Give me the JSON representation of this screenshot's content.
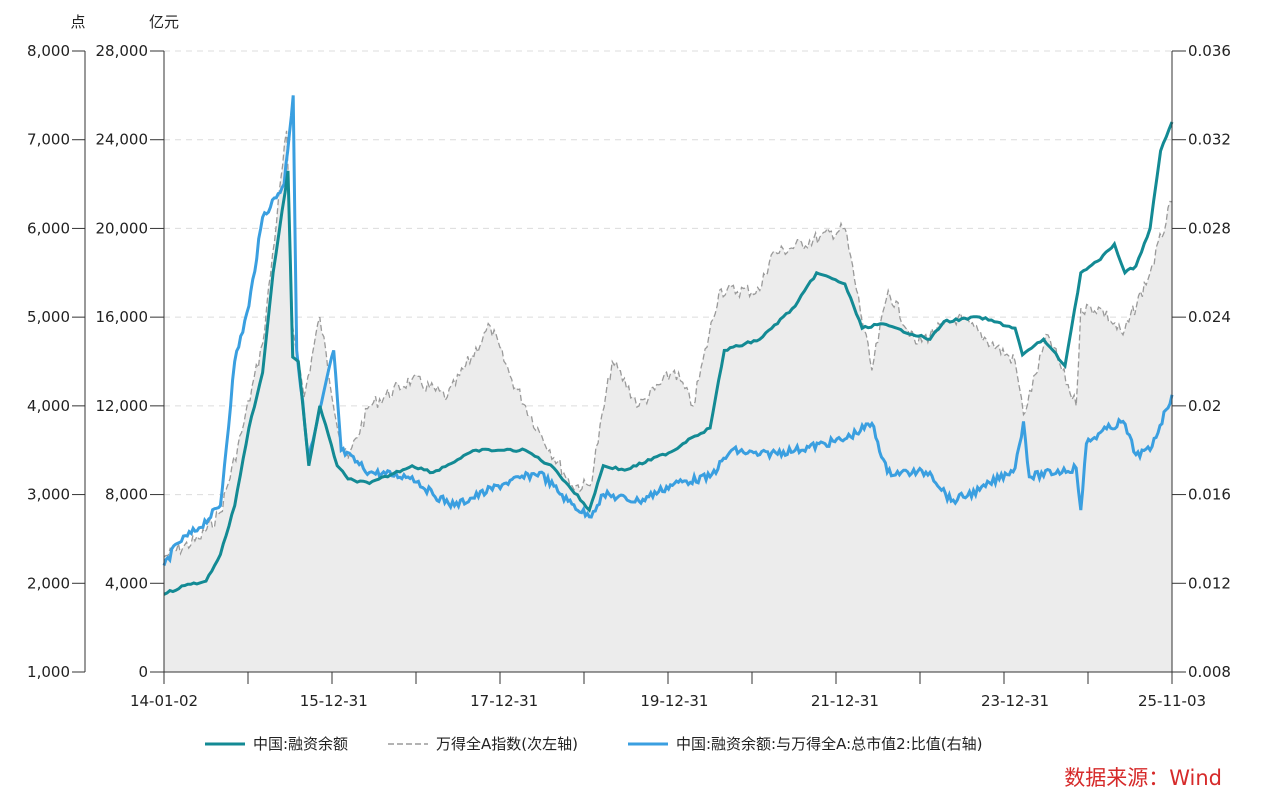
{
  "chart_data": {
    "type": "line",
    "units": {
      "left_outer": "点",
      "left_inner": "亿元"
    },
    "source": "数据来源：Wind",
    "colors": {
      "margin": "#138a94",
      "index": "#9a9a9a",
      "ratio": "#3a9fe0",
      "index_fill": "#ececec",
      "source": "#d62a2a",
      "grid": "#dcdcdc"
    },
    "axes": {
      "x": {
        "start": "2014-01-02",
        "end": "2025-11-03",
        "ticks": [
          "14-01-02",
          "15-12-31",
          "17-12-31",
          "19-12-31",
          "21-12-31",
          "23-12-31",
          "25-11-03"
        ],
        "tick_dates": [
          "2014-01-02",
          "2015-12-31",
          "2017-12-31",
          "2019-12-31",
          "2021-12-31",
          "2023-12-31",
          "2025-11-03"
        ]
      },
      "y_left_outer": {
        "range": [
          1000,
          8000
        ],
        "ticks": [
          "1,000",
          "2,000",
          "3,000",
          "4,000",
          "5,000",
          "6,000",
          "7,000",
          "8,000"
        ]
      },
      "y_left_inner": {
        "range": [
          0,
          28000
        ],
        "ticks": [
          "0",
          "4,000",
          "8,000",
          "12,000",
          "16,000",
          "20,000",
          "24,000",
          "28,000"
        ]
      },
      "y_right": {
        "range": [
          0.008,
          0.036
        ],
        "ticks": [
          "0.008",
          "0.012",
          "0.016",
          "0.02",
          "0.024",
          "0.028",
          "0.032",
          "0.036"
        ]
      }
    },
    "grid": true,
    "legend_position": "bottom",
    "series": [
      {
        "name": "中国:融资余额",
        "axis": "y_left_inner",
        "style": "solid",
        "points": [
          [
            "2014-01-02",
            3500
          ],
          [
            "2014-04-01",
            3900
          ],
          [
            "2014-07-01",
            4100
          ],
          [
            "2014-09-01",
            5300
          ],
          [
            "2014-11-01",
            7500
          ],
          [
            "2015-01-01",
            11000
          ],
          [
            "2015-03-01",
            13500
          ],
          [
            "2015-04-15",
            18000
          ],
          [
            "2015-06-18",
            22600
          ],
          [
            "2015-07-08",
            14200
          ],
          [
            "2015-08-01",
            14000
          ],
          [
            "2015-09-15",
            9300
          ],
          [
            "2015-11-01",
            12000
          ],
          [
            "2016-01-15",
            9300
          ],
          [
            "2016-03-01",
            8700
          ],
          [
            "2016-06-01",
            8500
          ],
          [
            "2016-12-01",
            9300
          ],
          [
            "2017-03-01",
            9000
          ],
          [
            "2017-09-01",
            10000
          ],
          [
            "2017-12-31",
            10000
          ],
          [
            "2018-04-01",
            10000
          ],
          [
            "2018-08-01",
            9200
          ],
          [
            "2018-12-31",
            7300
          ],
          [
            "2019-03-01",
            9300
          ],
          [
            "2019-06-01",
            9100
          ],
          [
            "2019-12-31",
            10000
          ],
          [
            "2020-03-01",
            10500
          ],
          [
            "2020-06-01",
            11000
          ],
          [
            "2020-08-01",
            14500
          ],
          [
            "2020-12-31",
            15000
          ],
          [
            "2021-06-01",
            16500
          ],
          [
            "2021-09-01",
            18000
          ],
          [
            "2021-12-31",
            17500
          ],
          [
            "2022-03-15",
            15500
          ],
          [
            "2022-06-01",
            15700
          ],
          [
            "2022-12-31",
            15000
          ],
          [
            "2023-03-01",
            15800
          ],
          [
            "2023-08-01",
            16000
          ],
          [
            "2023-12-31",
            15500
          ],
          [
            "2024-02-01",
            14300
          ],
          [
            "2024-05-01",
            15000
          ],
          [
            "2024-08-01",
            13800
          ],
          [
            "2024-10-08",
            18000
          ],
          [
            "2024-12-31",
            18600
          ],
          [
            "2025-03-01",
            19300
          ],
          [
            "2025-04-15",
            18000
          ],
          [
            "2025-06-01",
            18300
          ],
          [
            "2025-08-01",
            20000
          ],
          [
            "2025-09-15",
            23500
          ],
          [
            "2025-11-03",
            24800
          ]
        ]
      },
      {
        "name": "万得全A指数(次左轴)",
        "axis": "y_left_outer",
        "style": "dashed",
        "fill": true,
        "points": [
          [
            "2014-01-02",
            2300
          ],
          [
            "2014-06-01",
            2500
          ],
          [
            "2014-09-01",
            2800
          ],
          [
            "2014-12-01",
            3700
          ],
          [
            "2015-03-01",
            4700
          ],
          [
            "2015-06-12",
            7100
          ],
          [
            "2015-07-08",
            4900
          ],
          [
            "2015-08-26",
            4100
          ],
          [
            "2015-11-01",
            5000
          ],
          [
            "2016-01-28",
            3600
          ],
          [
            "2016-03-01",
            3400
          ],
          [
            "2016-06-01",
            4000
          ],
          [
            "2016-12-01",
            4300
          ],
          [
            "2017-05-01",
            4100
          ],
          [
            "2017-11-01",
            4900
          ],
          [
            "2018-02-01",
            4300
          ],
          [
            "2018-06-01",
            3700
          ],
          [
            "2018-10-18",
            3100
          ],
          [
            "2019-01-03",
            3100
          ],
          [
            "2019-04-08",
            4500
          ],
          [
            "2019-08-01",
            4000
          ],
          [
            "2019-12-31",
            4400
          ],
          [
            "2020-03-20",
            4000
          ],
          [
            "2020-07-10",
            5300
          ],
          [
            "2020-12-31",
            5300
          ],
          [
            "2021-02-18",
            5700
          ],
          [
            "2021-09-14",
            5900
          ],
          [
            "2021-12-31",
            6000
          ],
          [
            "2022-04-26",
            4400
          ],
          [
            "2022-07-05",
            5300
          ],
          [
            "2022-10-31",
            4700
          ],
          [
            "2023-05-01",
            5000
          ],
          [
            "2023-12-31",
            4500
          ],
          [
            "2024-02-05",
            3900
          ],
          [
            "2024-05-20",
            4800
          ],
          [
            "2024-09-18",
            4000
          ],
          [
            "2024-10-08",
            5100
          ],
          [
            "2024-12-31",
            5100
          ],
          [
            "2025-04-07",
            4800
          ],
          [
            "2025-08-01",
            5500
          ],
          [
            "2025-11-03",
            6300
          ]
        ]
      },
      {
        "name": "中国:融资余额:与万得全A:总市值2:比值(右轴)",
        "axis": "y_right",
        "style": "solid",
        "points": [
          [
            "2014-01-02",
            0.0128
          ],
          [
            "2014-03-01",
            0.0138
          ],
          [
            "2014-06-01",
            0.0145
          ],
          [
            "2014-09-01",
            0.0155
          ],
          [
            "2014-11-01",
            0.022
          ],
          [
            "2015-01-01",
            0.0245
          ],
          [
            "2015-03-01",
            0.0285
          ],
          [
            "2015-06-01",
            0.03
          ],
          [
            "2015-07-10",
            0.034
          ],
          [
            "2015-07-25",
            0.0225
          ],
          [
            "2015-09-15",
            0.0176
          ],
          [
            "2015-12-31",
            0.0225
          ],
          [
            "2016-02-01",
            0.018
          ],
          [
            "2016-06-01",
            0.017
          ],
          [
            "2016-12-01",
            0.0168
          ],
          [
            "2017-03-01",
            0.016
          ],
          [
            "2017-06-01",
            0.0155
          ],
          [
            "2017-12-31",
            0.0165
          ],
          [
            "2018-06-01",
            0.017
          ],
          [
            "2018-10-01",
            0.0157
          ],
          [
            "2018-12-31",
            0.015
          ],
          [
            "2019-03-01",
            0.016
          ],
          [
            "2019-08-01",
            0.0157
          ],
          [
            "2019-12-31",
            0.0165
          ],
          [
            "2020-06-01",
            0.0168
          ],
          [
            "2020-09-01",
            0.018
          ],
          [
            "2020-12-31",
            0.0178
          ],
          [
            "2021-06-01",
            0.018
          ],
          [
            "2021-12-31",
            0.0185
          ],
          [
            "2022-04-26",
            0.0192
          ],
          [
            "2022-07-01",
            0.017
          ],
          [
            "2022-12-31",
            0.017
          ],
          [
            "2023-04-01",
            0.0157
          ],
          [
            "2023-08-01",
            0.0162
          ],
          [
            "2023-12-31",
            0.0172
          ],
          [
            "2024-02-05",
            0.0193
          ],
          [
            "2024-03-01",
            0.0168
          ],
          [
            "2024-09-18",
            0.0172
          ],
          [
            "2024-10-08",
            0.0153
          ],
          [
            "2024-11-01",
            0.0183
          ],
          [
            "2024-12-31",
            0.0188
          ],
          [
            "2025-04-07",
            0.0193
          ],
          [
            "2025-06-01",
            0.0178
          ],
          [
            "2025-08-01",
            0.018
          ],
          [
            "2025-11-03",
            0.0205
          ]
        ]
      }
    ]
  }
}
